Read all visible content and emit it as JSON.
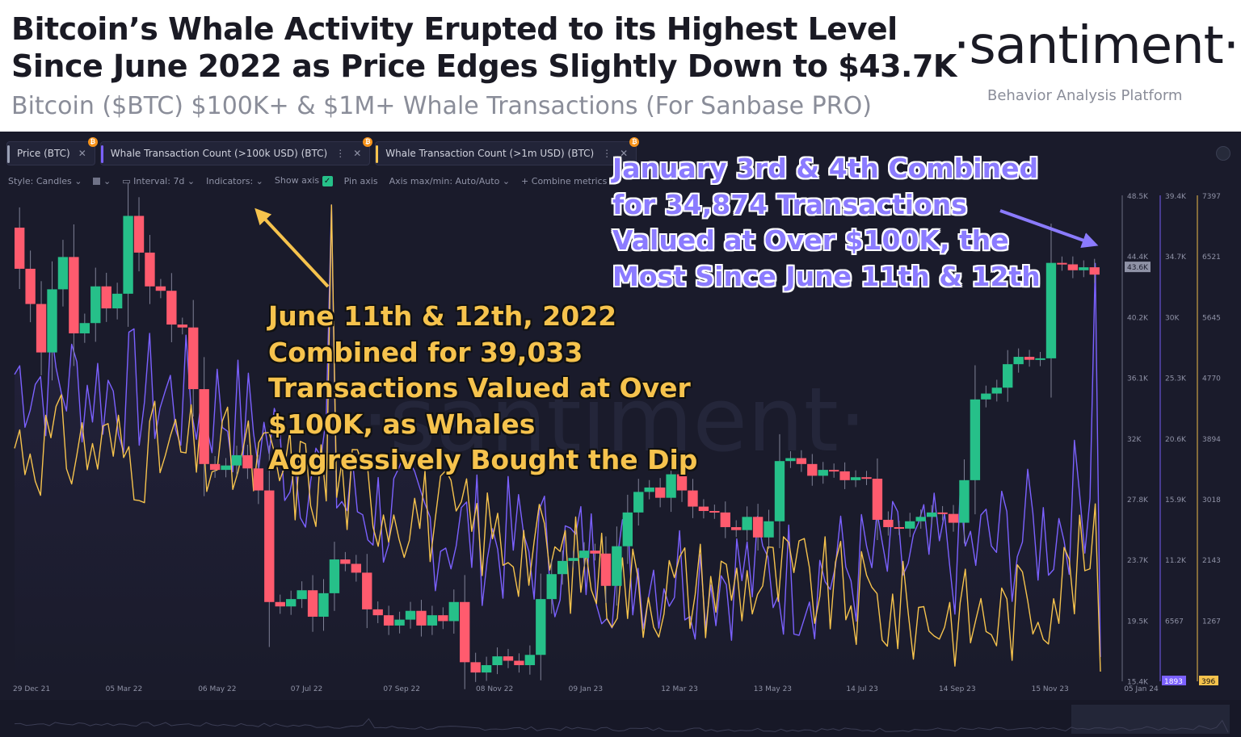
{
  "header": {
    "title_line1": "Bitcoin’s Whale Activity Erupted to its Highest Level",
    "title_line2": "Since June 2022 as Price Edges Slightly Down to $43.7K",
    "subtitle": "Bitcoin ($BTC) $100K+ & $1M+ Whale Transactions (For Sanbase PRO)",
    "brand": "·santiment·",
    "brand_tagline": "Behavior Analysis Platform"
  },
  "tabs": [
    {
      "label": "Price (BTC)",
      "color": "#9aa0b4"
    },
    {
      "label": "Whale Transaction Count (>100k USD) (BTC)",
      "color": "#7b61ff"
    },
    {
      "label": "Whale Transaction Count (>1m USD) (BTC)",
      "color": "#f6c34d"
    }
  ],
  "toolbar": {
    "style": "Style: Candles",
    "interval": "Interval: 7d",
    "indicators": "Indicators:",
    "show_axis": "Show axis",
    "pin_axis": "Pin axis",
    "axis_maxmin": "Axis max/min: Auto/Auto",
    "combine": "+ Combine metrics"
  },
  "annotations": {
    "gold": [
      "June 11th & 12th, 2022",
      "Combined for 39,033",
      "Transactions Valued at Over",
      "$100K, as Whales",
      "Aggressively Bought the Dip"
    ],
    "purple": [
      "January 3rd & 4th Combined",
      "for 34,874 Transactions",
      "Valued at Over $100K, the",
      "Most Since June 11th & 12th"
    ]
  },
  "colors": {
    "panel_bg": "#1a1b2b",
    "up": "#26c089",
    "down": "#ff5b6e",
    "whale_100k": "#7b61ff",
    "whale_1m": "#f6c34d"
  },
  "chart_data": {
    "type": "line",
    "x_labels": [
      "29 Dec 21",
      "05 Mar 22",
      "06 May 22",
      "07 Jul 22",
      "07 Sep 22",
      "08 Nov 22",
      "09 Jan 23",
      "12 Mar 23",
      "13 May 23",
      "14 Jul 23",
      "14 Sep 23",
      "15 Nov 23",
      "05 Jan 24"
    ],
    "axes": {
      "price": {
        "ticks": [
          "48.5K",
          "44.4K",
          "40.2K",
          "36.1K",
          "32K",
          "27.8K",
          "23.7K",
          "19.5K",
          "15.4K"
        ],
        "current": "43.6K",
        "range": [
          15400,
          48500
        ]
      },
      "whale_100k": {
        "ticks": [
          "39.4K",
          "34.7K",
          "30K",
          "25.3K",
          "20.6K",
          "15.9K",
          "11.2K",
          "6567"
        ],
        "current": "1893",
        "range": [
          1893,
          39400
        ]
      },
      "whale_1m": {
        "ticks": [
          "7397",
          "6521",
          "5645",
          "4770",
          "3894",
          "3018",
          "2143",
          "1267"
        ],
        "current": "396",
        "range": [
          396,
          7397
        ]
      }
    },
    "price_candles": [
      [
        46300,
        43500
      ],
      [
        43500,
        41100
      ],
      [
        41100,
        37800
      ],
      [
        37800,
        42100
      ],
      [
        42100,
        44300
      ],
      [
        44300,
        39100
      ],
      [
        39100,
        39800
      ],
      [
        39800,
        42300
      ],
      [
        42300,
        40800
      ],
      [
        40800,
        41800
      ],
      [
        41800,
        47100
      ],
      [
        47100,
        44600
      ],
      [
        44600,
        42300
      ],
      [
        42300,
        42000
      ],
      [
        42000,
        39700
      ],
      [
        39700,
        39500
      ],
      [
        39500,
        35300
      ],
      [
        35300,
        30200
      ],
      [
        30200,
        29800
      ],
      [
        29800,
        30100
      ],
      [
        30100,
        30800
      ],
      [
        30800,
        29900
      ],
      [
        29900,
        28400
      ],
      [
        28400,
        20800
      ],
      [
        20800,
        20500
      ],
      [
        20500,
        21000
      ],
      [
        21000,
        21600
      ],
      [
        21600,
        19800
      ],
      [
        19800,
        21400
      ],
      [
        21400,
        23700
      ],
      [
        23700,
        23400
      ],
      [
        23400,
        22800
      ],
      [
        22800,
        20300
      ],
      [
        20300,
        19900
      ],
      [
        19900,
        19200
      ],
      [
        19200,
        19600
      ],
      [
        19600,
        20200
      ],
      [
        20200,
        19200
      ],
      [
        19200,
        19900
      ],
      [
        19900,
        19500
      ],
      [
        19500,
        20800
      ],
      [
        20800,
        16700
      ],
      [
        16700,
        16000
      ],
      [
        16000,
        16500
      ],
      [
        16500,
        17100
      ],
      [
        17100,
        16800
      ],
      [
        16800,
        16500
      ],
      [
        16500,
        17200
      ],
      [
        17200,
        21000
      ],
      [
        21000,
        22700
      ],
      [
        22700,
        23600
      ],
      [
        23600,
        23800
      ],
      [
        23800,
        24300
      ],
      [
        24300,
        24100
      ],
      [
        24100,
        21900
      ],
      [
        21900,
        24600
      ],
      [
        24600,
        26900
      ],
      [
        26900,
        28300
      ],
      [
        28300,
        28600
      ],
      [
        28600,
        27900
      ],
      [
        27900,
        29500
      ],
      [
        29500,
        28400
      ],
      [
        28400,
        27300
      ],
      [
        27300,
        27000
      ],
      [
        27000,
        26900
      ],
      [
        26900,
        25900
      ],
      [
        25900,
        25700
      ],
      [
        25700,
        26600
      ],
      [
        26600,
        25200
      ],
      [
        25200,
        26300
      ],
      [
        26300,
        30400
      ],
      [
        30400,
        30600
      ],
      [
        30600,
        30200
      ],
      [
        30200,
        29400
      ],
      [
        29400,
        29800
      ],
      [
        29800,
        29700
      ],
      [
        29700,
        29100
      ],
      [
        29100,
        29300
      ],
      [
        29300,
        29200
      ],
      [
        29200,
        26400
      ],
      [
        26400,
        25900
      ],
      [
        25900,
        25800
      ],
      [
        25800,
        26300
      ],
      [
        26300,
        26600
      ],
      [
        26600,
        26900
      ],
      [
        26900,
        26800
      ],
      [
        26800,
        26200
      ],
      [
        26200,
        29100
      ],
      [
        29100,
        34600
      ],
      [
        34600,
        35000
      ],
      [
        35000,
        35400
      ],
      [
        35400,
        37000
      ],
      [
        37000,
        37500
      ],
      [
        37500,
        37300
      ],
      [
        37300,
        37400
      ],
      [
        37400,
        43900
      ],
      [
        43900,
        43800
      ],
      [
        43800,
        43400
      ],
      [
        43400,
        43600
      ],
      [
        43600,
        43100
      ]
    ],
    "whale_100k": {
      "name": "Whale Transaction Count (>100k USD) (BTC)"
    },
    "whale_1m": {
      "name": "Whale Transaction Count (>1m USD) (BTC)"
    }
  }
}
